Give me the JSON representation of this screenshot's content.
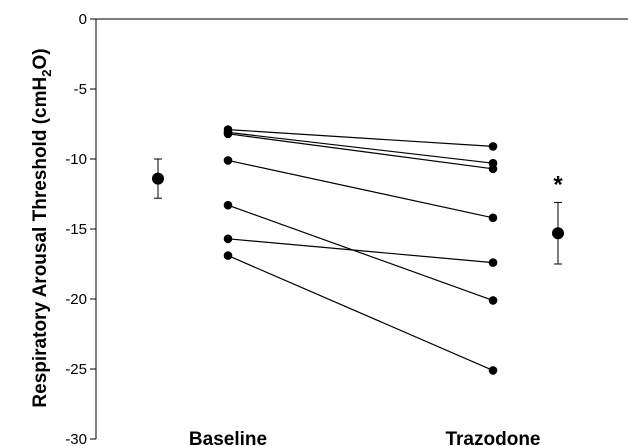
{
  "chart_data": {
    "type": "scatter",
    "title": "",
    "ylabel": {
      "prefix": "Respiratory Arousal Threshold (cmH",
      "sub": "2",
      "suffix": "O)"
    },
    "ylim": [
      -30,
      0
    ],
    "yticks": [
      0,
      -5,
      -10,
      -15,
      -20,
      -25,
      -30
    ],
    "categories": [
      "Baseline",
      "Trazodone"
    ],
    "individuals": [
      {
        "baseline": -7.9,
        "trazodone": -9.1
      },
      {
        "baseline": -8.1,
        "trazodone": -10.3
      },
      {
        "baseline": -8.2,
        "trazodone": -10.7
      },
      {
        "baseline": -10.1,
        "trazodone": -14.2
      },
      {
        "baseline": -13.3,
        "trazodone": -20.1
      },
      {
        "baseline": -15.7,
        "trazodone": -17.4
      },
      {
        "baseline": -16.9,
        "trazodone": -25.1
      }
    ],
    "summary": [
      {
        "group": "Baseline",
        "mean": -11.4,
        "error_upper": -10.0,
        "error_lower": -12.8
      },
      {
        "group": "Trazodone",
        "mean": -15.3,
        "error_upper": -13.1,
        "error_lower": -17.5
      }
    ],
    "significance_marker": "*",
    "grid": false
  }
}
